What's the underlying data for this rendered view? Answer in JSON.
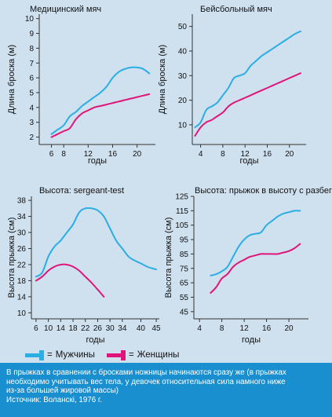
{
  "colors": {
    "men": "#2aaee3",
    "women": "#e0157a",
    "axis": "#333333",
    "caption_bg": "#1a8fd0"
  },
  "legend": {
    "eq": "=",
    "men": "Мужчины",
    "women": "Женщины"
  },
  "caption": {
    "lines": [
      "В прыжках в сравнении с бросками ножницы начинаются сразу же (в прыжках",
      "необходимо учитывать вес тела, у девочек относительная сила намного ниже",
      "из-за большей жировой массы)",
      "Источник: Воланскі, 1976 г."
    ]
  },
  "chart_data": [
    {
      "type": "line",
      "title": "Медицинский мяч",
      "xlabel": "годы",
      "ylabel": "Длина броска (м)",
      "xlim": [
        4,
        23
      ],
      "ylim": [
        1.5,
        10.3
      ],
      "xticks": [
        6,
        8,
        12,
        16,
        20
      ],
      "yticks": [
        2,
        3,
        4,
        5,
        6,
        7,
        8,
        9,
        10
      ],
      "series": [
        {
          "name": "Мужчины",
          "color": "men",
          "x": [
            6,
            7,
            8,
            9,
            10,
            11,
            12,
            13,
            14,
            15,
            16,
            17,
            18,
            19,
            20,
            21,
            22
          ],
          "y": [
            2.2,
            2.5,
            2.8,
            3.4,
            3.7,
            4.1,
            4.4,
            4.7,
            5.0,
            5.4,
            6.0,
            6.4,
            6.6,
            6.7,
            6.7,
            6.6,
            6.3
          ]
        },
        {
          "name": "Женщины",
          "color": "women",
          "x": [
            6,
            7,
            8,
            9,
            10,
            11,
            12,
            13,
            14,
            15,
            16,
            17,
            18,
            19,
            20,
            21,
            22
          ],
          "y": [
            2.0,
            2.2,
            2.4,
            2.6,
            3.2,
            3.6,
            3.8,
            4.0,
            4.1,
            4.2,
            4.3,
            4.4,
            4.5,
            4.6,
            4.7,
            4.8,
            4.9
          ]
        }
      ]
    },
    {
      "type": "line",
      "title": "Бейсбольный мяч",
      "xlabel": "годы",
      "ylabel": "Длина броска (м)",
      "xlim": [
        2.5,
        23
      ],
      "ylim": [
        2,
        55
      ],
      "xticks": [
        4,
        8,
        12,
        16,
        20
      ],
      "yticks": [
        10,
        20,
        30,
        40,
        50
      ],
      "series": [
        {
          "name": "Мужчины",
          "color": "men",
          "x": [
            3,
            4,
            5,
            6,
            7,
            8,
            9,
            10,
            11,
            12,
            13,
            14,
            15,
            16,
            17,
            18,
            19,
            20,
            21,
            22
          ],
          "y": [
            9,
            11,
            16,
            17.5,
            19,
            22,
            25,
            29,
            30,
            31,
            34,
            36,
            38,
            39.5,
            41,
            42.5,
            44,
            45.5,
            47,
            48
          ]
        },
        {
          "name": "Женщины",
          "color": "women",
          "x": [
            3,
            4,
            5,
            6,
            7,
            8,
            9,
            10,
            11,
            12,
            13,
            14,
            15,
            16,
            17,
            18,
            19,
            20,
            21,
            22
          ],
          "y": [
            5.5,
            9,
            11,
            12,
            13.5,
            15,
            17.5,
            19,
            20,
            21,
            22,
            23,
            24,
            25,
            26,
            27,
            28,
            29,
            30,
            31
          ]
        }
      ]
    },
    {
      "type": "line",
      "title": "Высота: sergeant-test",
      "xlabel": "годы",
      "ylabel": "Высота прыжка (см)",
      "xlim": [
        4.5,
        46
      ],
      "ylim": [
        8.5,
        39
      ],
      "xticks": [
        6,
        10,
        14,
        18,
        22,
        26,
        30,
        34,
        40,
        45
      ],
      "xtick_labels": [
        "6",
        "10",
        "14",
        "18",
        "22",
        "26",
        "30",
        "34",
        "40",
        "45"
      ],
      "yticks": [
        10,
        14,
        18,
        22,
        26,
        30,
        34,
        38
      ],
      "series": [
        {
          "name": "Мужчины",
          "color": "men",
          "x": [
            6,
            8,
            10,
            12,
            14,
            16,
            18,
            20,
            22,
            24,
            26,
            28,
            30,
            32,
            34,
            36,
            38,
            40,
            42,
            44,
            45
          ],
          "y": [
            19,
            20,
            24,
            26.5,
            28,
            30,
            32,
            35,
            36,
            36,
            35.5,
            34,
            31,
            28,
            26,
            24,
            23,
            22.3,
            21.5,
            21,
            20.8
          ]
        },
        {
          "name": "Женщины",
          "color": "women",
          "x": [
            6,
            8,
            10,
            12,
            14,
            16,
            18,
            20,
            22,
            24,
            26,
            28
          ],
          "y": [
            18,
            19,
            20.5,
            21.5,
            22,
            22,
            21.5,
            20.5,
            19,
            17.5,
            15.8,
            14
          ]
        }
      ]
    },
    {
      "type": "line",
      "title": "Высота: прыжок в высоту с разбега",
      "xlabel": "годы",
      "ylabel": "Высота прыжка (см)",
      "xlim": [
        3,
        23.5
      ],
      "ylim": [
        40,
        125
      ],
      "xticks": [
        4,
        8,
        12,
        16,
        20
      ],
      "yticks": [
        45,
        55,
        65,
        75,
        85,
        95,
        105,
        115,
        125
      ],
      "series": [
        {
          "name": "Мужчины",
          "color": "men",
          "x": [
            6,
            7,
            8,
            9,
            10,
            11,
            12,
            13,
            14,
            15,
            16,
            17,
            18,
            19,
            20,
            21,
            22
          ],
          "y": [
            70,
            71,
            73,
            76,
            83,
            90,
            95,
            98,
            99,
            100,
            105,
            108,
            111,
            113,
            114,
            115,
            115
          ]
        },
        {
          "name": "Женщины",
          "color": "women",
          "x": [
            6,
            7,
            8,
            9,
            10,
            11,
            12,
            13,
            14,
            15,
            16,
            17,
            18,
            19,
            20,
            21,
            22
          ],
          "y": [
            58,
            62,
            68,
            71,
            76,
            79,
            81,
            83,
            84,
            85,
            85,
            85,
            85,
            86,
            87,
            89,
            92
          ]
        }
      ]
    }
  ]
}
